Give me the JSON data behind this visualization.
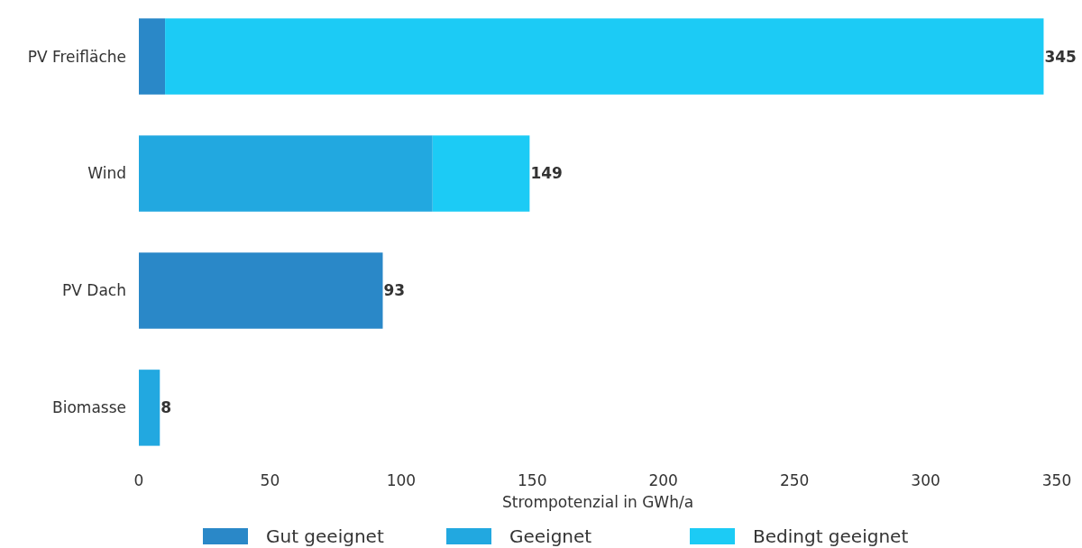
{
  "chart_data": {
    "type": "bar",
    "orientation": "horizontal",
    "stacked": true,
    "xlabel": "Strompotenzial in GWh/a",
    "categories": [
      "PV Freifläche",
      "Wind",
      "PV Dach",
      "Biomasse"
    ],
    "series": [
      {
        "name": "Gut geeignet",
        "color": "#2a88c8",
        "values": [
          10,
          null,
          93,
          null
        ]
      },
      {
        "name": "Geeignet",
        "color": "#22a8e0",
        "values": [
          null,
          112,
          null,
          8
        ]
      },
      {
        "name": "Bedingt geeignet",
        "color": "#1ccbf5",
        "values": [
          335,
          37,
          null,
          null
        ]
      }
    ],
    "totals": [
      "345",
      "149",
      "93",
      "8"
    ],
    "xlim": [
      0,
      350
    ],
    "xticks": [
      0,
      50,
      100,
      150,
      200,
      250,
      300,
      350
    ],
    "grid": false,
    "legend": "bottom"
  }
}
